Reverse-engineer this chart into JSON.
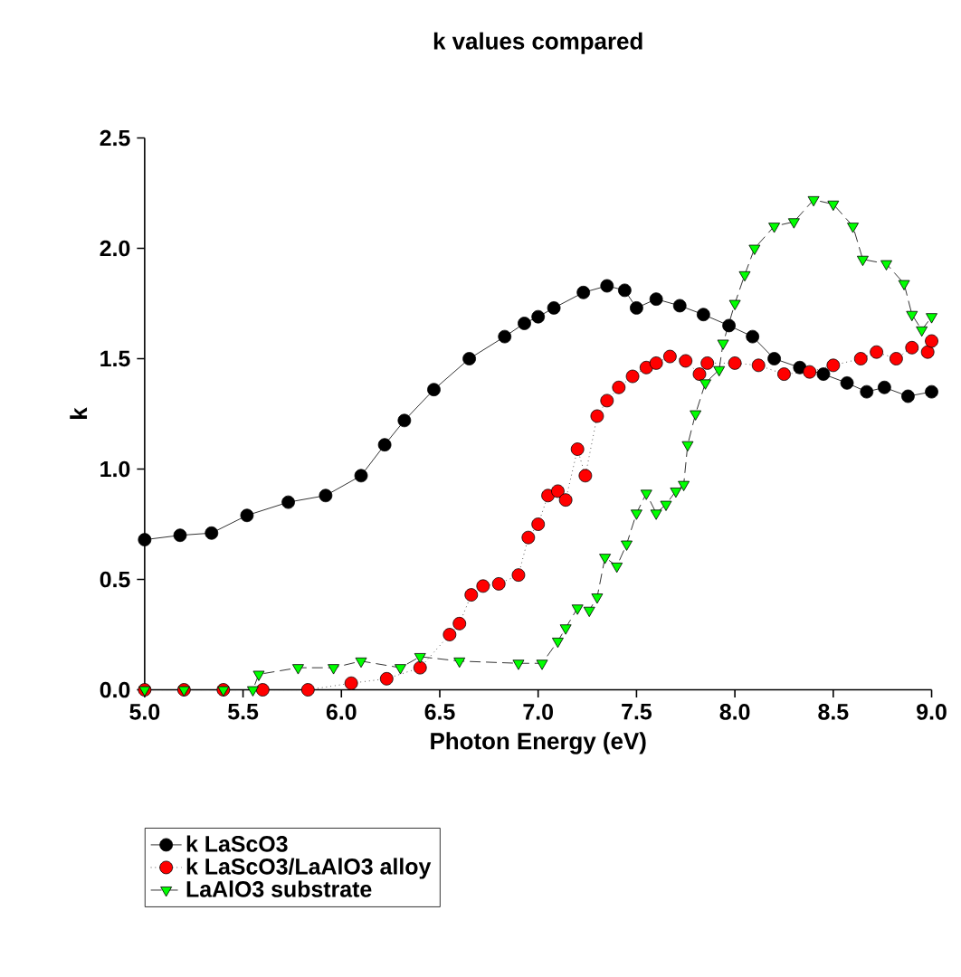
{
  "chart_data": {
    "type": "line",
    "title": "k values compared",
    "xlabel": "Photon Energy (eV)",
    "ylabel": "k",
    "xlim": [
      5.0,
      9.0
    ],
    "xticks": [
      {
        "value": 5.0,
        "label": "5.0"
      },
      {
        "value": 5.5,
        "label": "5.5"
      },
      {
        "value": 6.0,
        "label": "6.0"
      },
      {
        "value": 6.5,
        "label": "6.5"
      },
      {
        "value": 7.0,
        "label": "7.0"
      },
      {
        "value": 7.5,
        "label": "7.5"
      },
      {
        "value": 8.0,
        "label": "8.0"
      },
      {
        "value": 8.5,
        "label": "8.5"
      },
      {
        "value": 9.0,
        "label": "9.0"
      }
    ],
    "ylim": [
      0.0,
      2.5
    ],
    "yticks": [
      {
        "value": 0.0,
        "label": "0.0"
      },
      {
        "value": 0.5,
        "label": "0.5"
      },
      {
        "value": 1.0,
        "label": "1.0"
      },
      {
        "value": 1.5,
        "label": "1.5"
      },
      {
        "value": 2.0,
        "label": "2.0"
      },
      {
        "value": 2.5,
        "label": "2.5"
      }
    ],
    "grid": false,
    "legend": "bottom left",
    "series": [
      {
        "name": "k LaScO3",
        "color": "#000000",
        "marker": "circle",
        "line_style": "solid",
        "x": [
          5.0,
          5.18,
          5.34,
          5.52,
          5.73,
          5.92,
          6.1,
          6.22,
          6.32,
          6.47,
          6.65,
          6.83,
          6.93,
          7.0,
          7.08,
          7.23,
          7.35,
          7.44,
          7.5,
          7.6,
          7.72,
          7.84,
          7.97,
          8.09,
          8.2,
          8.33,
          8.45,
          8.57,
          8.67,
          8.76,
          8.88,
          9.0
        ],
        "values": [
          0.68,
          0.7,
          0.71,
          0.79,
          0.85,
          0.88,
          0.97,
          1.11,
          1.22,
          1.36,
          1.5,
          1.6,
          1.66,
          1.69,
          1.73,
          1.8,
          1.83,
          1.81,
          1.73,
          1.77,
          1.74,
          1.7,
          1.65,
          1.6,
          1.5,
          1.46,
          1.43,
          1.39,
          1.35,
          1.37,
          1.33,
          1.35
        ]
      },
      {
        "name": "k LaScO3/LaAlO3 alloy",
        "color": "#ff0000",
        "marker": "circle",
        "line_style": "dotted",
        "x": [
          5.0,
          5.2,
          5.4,
          5.6,
          5.83,
          6.05,
          6.23,
          6.4,
          6.55,
          6.6,
          6.66,
          6.72,
          6.8,
          6.9,
          6.95,
          7.0,
          7.05,
          7.1,
          7.14,
          7.2,
          7.24,
          7.3,
          7.35,
          7.41,
          7.48,
          7.55,
          7.6,
          7.67,
          7.75,
          7.82,
          7.86,
          8.0,
          8.12,
          8.25,
          8.38,
          8.5,
          8.64,
          8.72,
          8.82,
          8.9,
          8.98,
          9.0
        ],
        "values": [
          0.0,
          0.0,
          0.0,
          0.0,
          0.0,
          0.03,
          0.05,
          0.1,
          0.25,
          0.3,
          0.43,
          0.47,
          0.48,
          0.52,
          0.69,
          0.75,
          0.88,
          0.9,
          0.86,
          1.09,
          0.97,
          1.24,
          1.31,
          1.37,
          1.42,
          1.46,
          1.48,
          1.51,
          1.49,
          1.43,
          1.48,
          1.48,
          1.47,
          1.43,
          1.44,
          1.47,
          1.5,
          1.53,
          1.5,
          1.55,
          1.53,
          1.58
        ]
      },
      {
        "name": "LaAlO3 substrate",
        "color": "#00ff00",
        "marker": "triangle",
        "line_style": "dashed",
        "x": [
          5.0,
          5.2,
          5.4,
          5.55,
          5.58,
          5.78,
          5.96,
          6.1,
          6.3,
          6.4,
          6.6,
          6.9,
          7.02,
          7.1,
          7.14,
          7.2,
          7.26,
          7.3,
          7.34,
          7.4,
          7.45,
          7.5,
          7.55,
          7.6,
          7.65,
          7.7,
          7.74,
          7.76,
          7.8,
          7.85,
          7.92,
          7.94,
          8.0,
          8.05,
          8.1,
          8.2,
          8.3,
          8.4,
          8.5,
          8.6,
          8.65,
          8.77,
          8.86,
          8.9,
          8.95,
          9.0
        ],
        "values": [
          0.0,
          0.0,
          0.0,
          0.0,
          0.07,
          0.1,
          0.1,
          0.13,
          0.1,
          0.15,
          0.13,
          0.12,
          0.12,
          0.22,
          0.28,
          0.37,
          0.36,
          0.42,
          0.6,
          0.56,
          0.66,
          0.8,
          0.89,
          0.8,
          0.84,
          0.9,
          0.93,
          1.11,
          1.25,
          1.39,
          1.45,
          1.57,
          1.75,
          1.88,
          2.0,
          2.1,
          2.12,
          2.22,
          2.2,
          2.1,
          1.95,
          1.93,
          1.84,
          1.7,
          1.63,
          1.69
        ]
      }
    ]
  }
}
